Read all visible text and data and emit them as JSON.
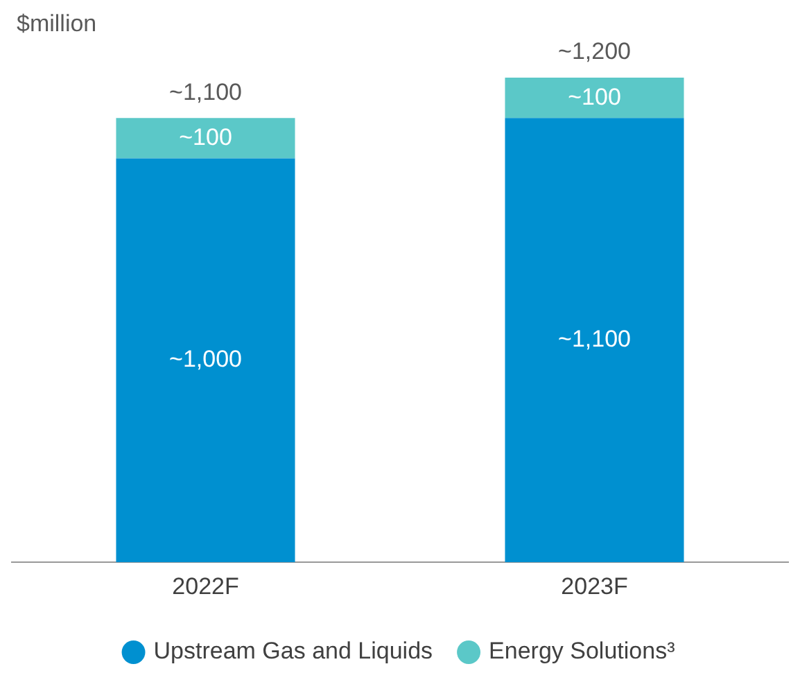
{
  "chart_data": {
    "type": "bar",
    "ylabel": "$million",
    "categories": [
      "2022F",
      "2023F"
    ],
    "stacked": true,
    "tick_labels": "x",
    "grid": false,
    "legend": "bottom",
    "series": [
      {
        "name": "Upstream Gas and Liquids",
        "color": "#0090d0",
        "values": [
          1000,
          1100
        ],
        "value_labels": [
          "~1,000",
          "~1,100"
        ]
      },
      {
        "name": "Energy Solutions³",
        "color": "#5bc8c8",
        "values": [
          100,
          100
        ],
        "value_labels": [
          "~100",
          "~100"
        ]
      }
    ],
    "totals": [
      "~1,100",
      "~1,200"
    ]
  }
}
